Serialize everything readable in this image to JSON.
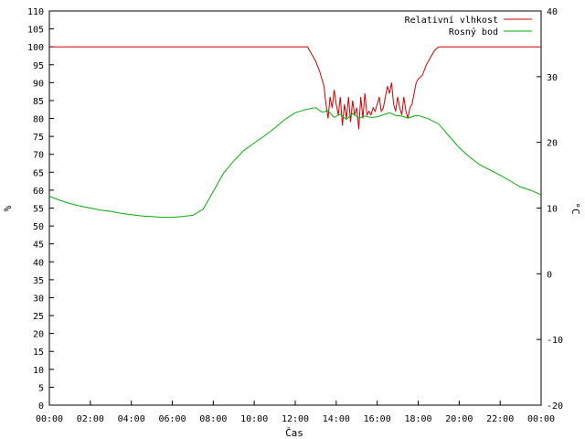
{
  "chart_data": {
    "type": "line",
    "xlabel": "Čas",
    "ylabel": "%",
    "y2label": "°C",
    "ylim": [
      0,
      110
    ],
    "y2lim": [
      -20,
      40
    ],
    "xlim": [
      0,
      24
    ],
    "grid": false,
    "legend_position": "top-right",
    "xticks": [
      "00:00",
      "02:00",
      "04:00",
      "06:00",
      "08:00",
      "10:00",
      "12:00",
      "14:00",
      "16:00",
      "18:00",
      "20:00",
      "22:00",
      "00:00"
    ],
    "yticks": [
      0,
      5,
      10,
      15,
      20,
      25,
      30,
      35,
      40,
      45,
      50,
      55,
      60,
      65,
      70,
      75,
      80,
      85,
      90,
      95,
      100,
      105,
      110
    ],
    "y2ticks": [
      -20,
      -10,
      0,
      10,
      20,
      30,
      40
    ],
    "series": [
      {
        "name": "Relativní vlhkost",
        "axis": "left",
        "color": "#d00000",
        "x": [
          0,
          12.6,
          12.8,
          13.0,
          13.2,
          13.4,
          13.5,
          13.6,
          13.7,
          13.8,
          13.9,
          14.0,
          14.1,
          14.2,
          14.3,
          14.4,
          14.5,
          14.6,
          14.7,
          14.8,
          14.9,
          15.0,
          15.1,
          15.2,
          15.3,
          15.4,
          15.5,
          15.6,
          15.7,
          15.8,
          15.9,
          16.0,
          16.1,
          16.2,
          16.3,
          16.4,
          16.5,
          16.6,
          16.7,
          16.8,
          16.9,
          17.0,
          17.1,
          17.2,
          17.3,
          17.4,
          17.5,
          17.6,
          17.7,
          17.8,
          17.9,
          18.0,
          18.2,
          18.4,
          18.6,
          18.8,
          19.0,
          24
        ],
        "y": [
          100,
          100,
          98,
          96,
          93,
          89,
          84,
          80,
          86,
          83,
          88,
          84,
          81,
          86,
          78,
          84,
          80,
          86,
          79,
          85,
          81,
          83,
          77,
          86,
          80,
          87,
          81,
          82,
          81,
          83,
          82,
          84,
          86,
          82,
          83,
          86,
          89,
          87,
          90,
          84,
          82,
          86,
          83,
          81,
          86,
          82,
          80,
          83,
          84,
          87,
          90,
          91,
          92,
          95,
          97,
          99,
          100,
          100
        ]
      },
      {
        "name": "Rosný bod",
        "axis": "right",
        "color": "#00b000",
        "x": [
          0,
          0.5,
          1.0,
          1.5,
          2.0,
          2.5,
          3.0,
          3.5,
          4.0,
          4.5,
          5.0,
          5.5,
          6.0,
          6.5,
          7.0,
          7.5,
          8.0,
          8.5,
          9.0,
          9.5,
          10.0,
          10.5,
          11.0,
          11.5,
          12.0,
          12.5,
          13.0,
          13.3,
          13.6,
          13.9,
          14.2,
          14.5,
          14.8,
          15.1,
          15.4,
          15.7,
          16.0,
          16.3,
          16.6,
          16.9,
          17.2,
          17.5,
          17.8,
          18.0,
          18.5,
          19.0,
          19.5,
          20.0,
          20.5,
          21.0,
          21.5,
          22.0,
          22.5,
          23.0,
          23.5,
          24
        ],
        "y": [
          11.8,
          11.2,
          10.7,
          10.3,
          10.0,
          9.7,
          9.5,
          9.2,
          9.0,
          8.8,
          8.7,
          8.6,
          8.6,
          8.7,
          8.9,
          9.8,
          12.5,
          15.3,
          17.2,
          18.8,
          19.9,
          21.0,
          22.2,
          23.5,
          24.5,
          25.0,
          25.3,
          24.6,
          24.8,
          23.8,
          24.3,
          23.5,
          24.4,
          23.7,
          24.0,
          23.8,
          23.9,
          24.2,
          24.5,
          24.1,
          24.0,
          23.7,
          24.0,
          24.1,
          23.6,
          22.8,
          21.0,
          19.2,
          17.8,
          16.6,
          15.8,
          15.0,
          14.1,
          13.2,
          12.7,
          12.0
        ]
      }
    ]
  }
}
